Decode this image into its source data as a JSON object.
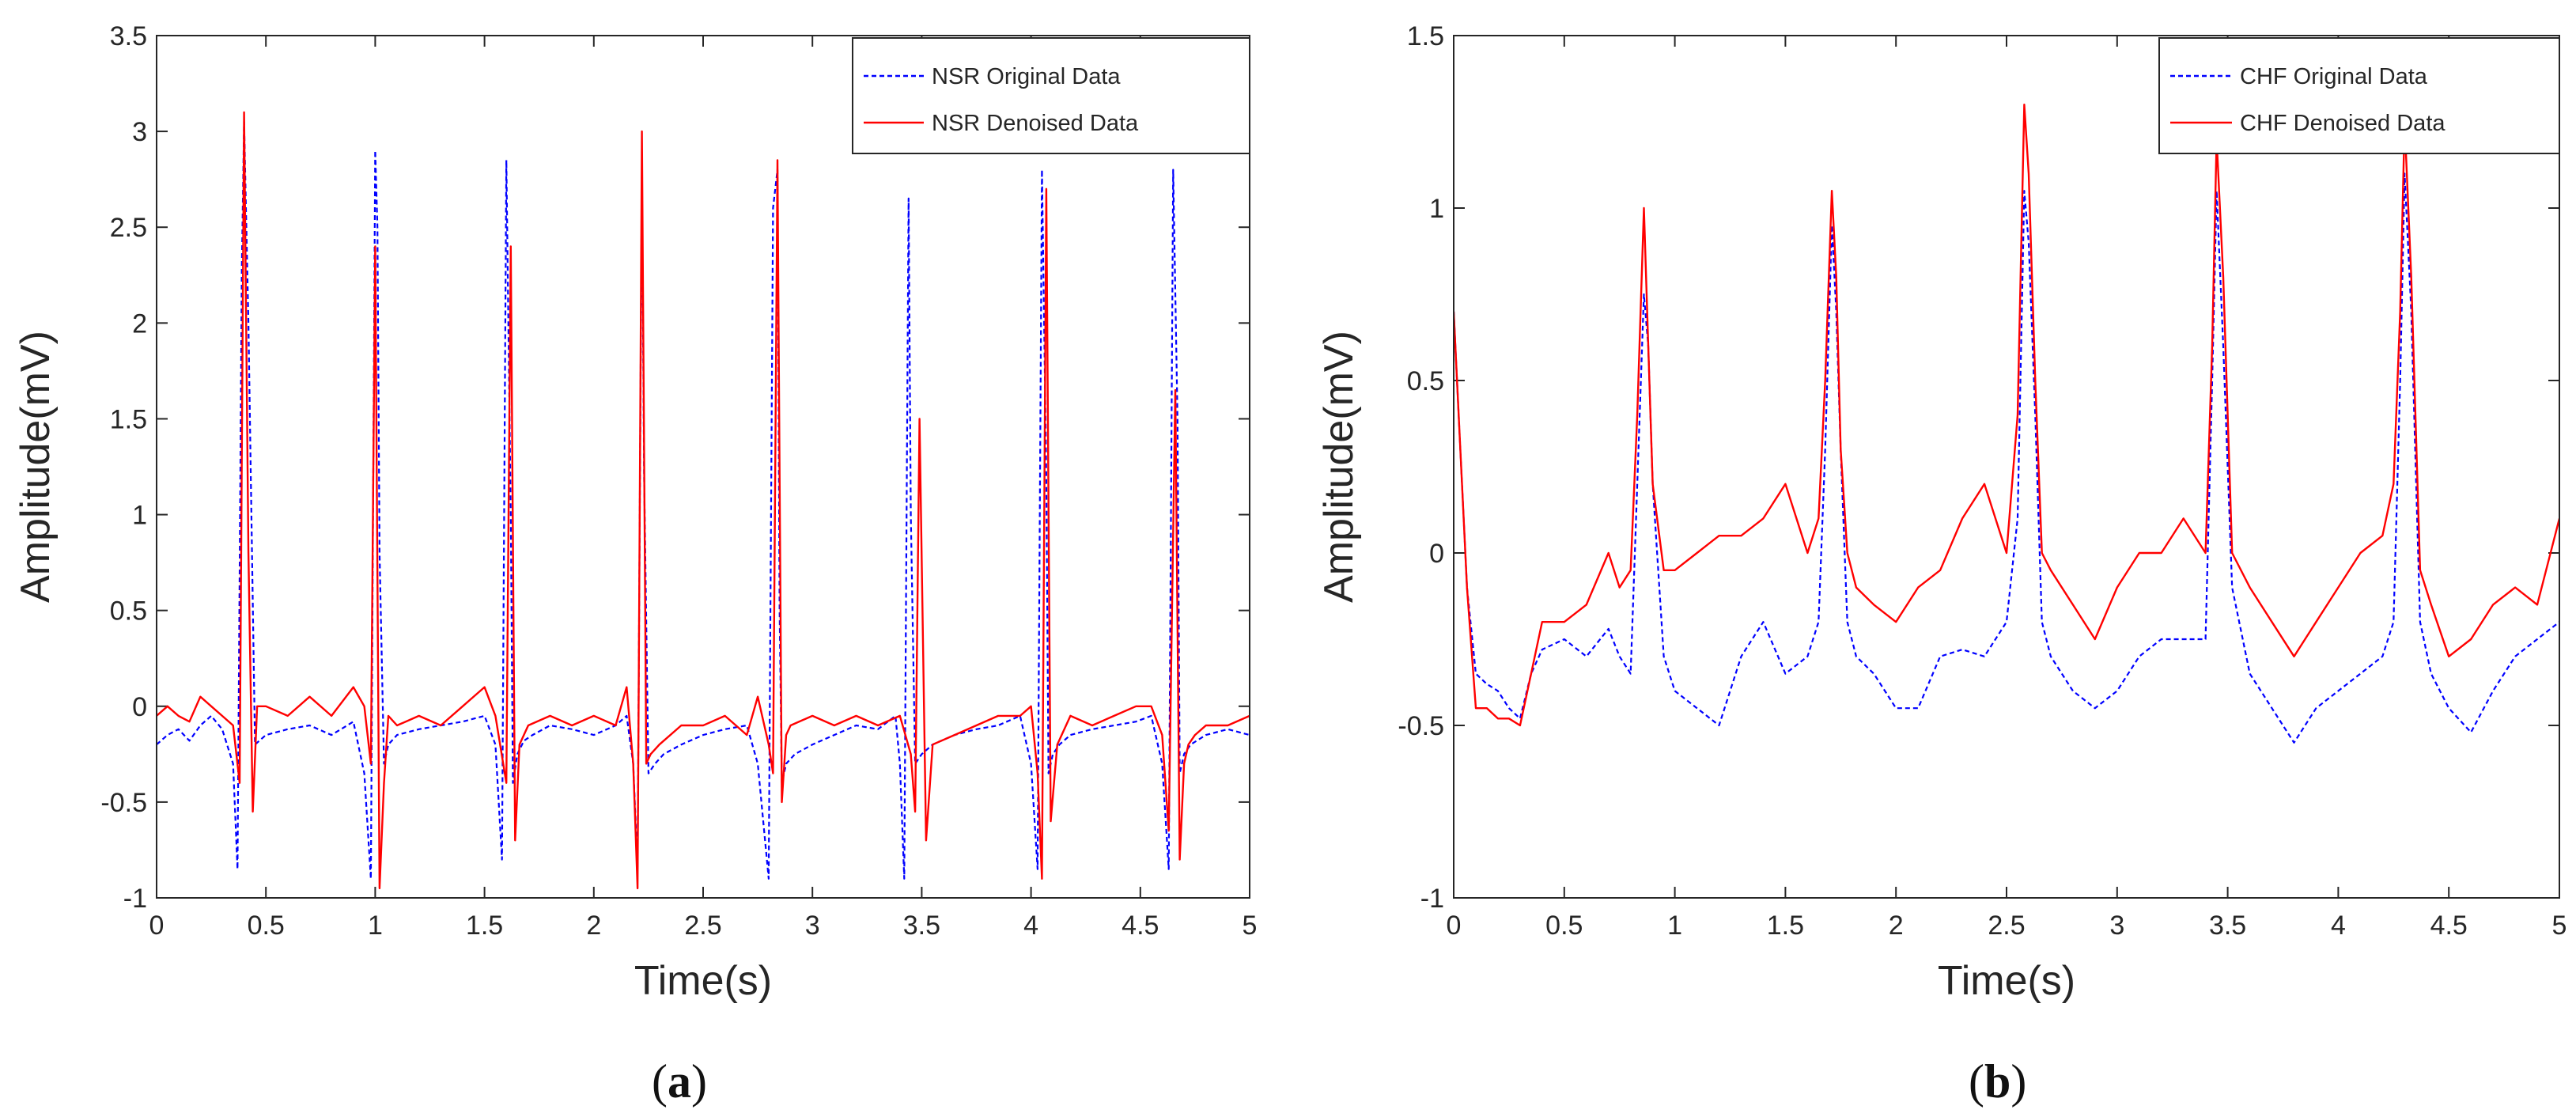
{
  "figure": {
    "captions": [
      {
        "open": "(",
        "letter": "a",
        "close": ")"
      },
      {
        "open": "(",
        "letter": "b",
        "close": ")"
      }
    ]
  },
  "colors": {
    "original": "#0000ff",
    "denoised": "#ff0000",
    "axis": "#262626"
  },
  "chart_data": [
    {
      "type": "line",
      "xlabel": "Time(s)",
      "ylabel": "Amplitude(mV)",
      "xlim": [
        0,
        5
      ],
      "ylim": [
        -1,
        3.5
      ],
      "xticks": [
        0,
        0.5,
        1,
        1.5,
        2,
        2.5,
        3,
        3.5,
        4,
        4.5,
        5
      ],
      "xtick_labels": [
        "0",
        "0.5",
        "1",
        "1.5",
        "2",
        "2.5",
        "3",
        "3.5",
        "4",
        "4.5",
        "5"
      ],
      "yticks": [
        -1,
        -0.5,
        0,
        0.5,
        1,
        1.5,
        2,
        2.5,
        3,
        3.5
      ],
      "ytick_labels": [
        "-1",
        "-0.5",
        "0",
        "0.5",
        "1",
        "1.5",
        "2",
        "2.5",
        "3",
        "3.5"
      ],
      "legend_position": "top-right",
      "series": [
        {
          "name": "NSR Original Data",
          "style": "dashed",
          "color": "#0000ff",
          "x": [
            0,
            0.05,
            0.1,
            0.15,
            0.2,
            0.25,
            0.3,
            0.35,
            0.37,
            0.39,
            0.4,
            0.42,
            0.45,
            0.5,
            0.6,
            0.7,
            0.8,
            0.9,
            0.95,
            0.98,
            1.0,
            1.01,
            1.02,
            1.04,
            1.06,
            1.1,
            1.2,
            1.3,
            1.4,
            1.5,
            1.55,
            1.58,
            1.6,
            1.62,
            1.63,
            1.65,
            1.68,
            1.72,
            1.8,
            1.9,
            2.0,
            2.1,
            2.15,
            2.18,
            2.2,
            2.22,
            2.23,
            2.25,
            2.28,
            2.32,
            2.4,
            2.5,
            2.6,
            2.7,
            2.75,
            2.8,
            2.82,
            2.84,
            2.85,
            2.86,
            2.88,
            2.92,
            3.0,
            3.1,
            3.2,
            3.3,
            3.38,
            3.4,
            3.42,
            3.44,
            3.45,
            3.47,
            3.5,
            3.55,
            3.65,
            3.75,
            3.85,
            3.95,
            4.0,
            4.03,
            4.05,
            4.07,
            4.08,
            4.1,
            4.13,
            4.18,
            4.28,
            4.38,
            4.48,
            4.55,
            4.6,
            4.63,
            4.65,
            4.67,
            4.68,
            4.7,
            4.73,
            4.8,
            4.9,
            5.0
          ],
          "y": [
            -0.2,
            -0.15,
            -0.12,
            -0.18,
            -0.1,
            -0.05,
            -0.12,
            -0.3,
            -0.85,
            2.3,
            3.05,
            2.0,
            -0.2,
            -0.15,
            -0.12,
            -0.1,
            -0.15,
            -0.08,
            -0.35,
            -0.9,
            2.9,
            2.5,
            0.8,
            -0.3,
            -0.2,
            -0.15,
            -0.12,
            -0.1,
            -0.08,
            -0.05,
            -0.2,
            -0.8,
            2.85,
            1.0,
            -0.4,
            -0.25,
            -0.18,
            -0.15,
            -0.1,
            -0.12,
            -0.15,
            -0.1,
            -0.05,
            -0.3,
            -0.85,
            2.8,
            1.2,
            -0.35,
            -0.3,
            -0.25,
            -0.2,
            -0.15,
            -0.12,
            -0.1,
            -0.3,
            -0.9,
            2.6,
            2.8,
            0.5,
            -0.4,
            -0.3,
            -0.25,
            -0.2,
            -0.15,
            -0.1,
            -0.12,
            -0.05,
            -0.3,
            -0.9,
            2.65,
            1.0,
            -0.3,
            -0.25,
            -0.2,
            -0.15,
            -0.12,
            -0.1,
            -0.05,
            -0.3,
            -0.85,
            2.8,
            1.2,
            -0.35,
            -0.25,
            -0.2,
            -0.15,
            -0.12,
            -0.1,
            -0.08,
            -0.05,
            -0.3,
            -0.85,
            2.8,
            1.5,
            -0.35,
            -0.25,
            -0.2,
            -0.15,
            -0.12,
            -0.15
          ]
        },
        {
          "name": "NSR Denoised Data",
          "style": "solid",
          "color": "#ff0000",
          "x": [
            0,
            0.05,
            0.1,
            0.15,
            0.2,
            0.25,
            0.3,
            0.35,
            0.38,
            0.4,
            0.42,
            0.44,
            0.46,
            0.5,
            0.6,
            0.7,
            0.8,
            0.9,
            0.95,
            0.98,
            1.0,
            1.02,
            1.04,
            1.06,
            1.1,
            1.2,
            1.3,
            1.4,
            1.5,
            1.55,
            1.6,
            1.62,
            1.64,
            1.66,
            1.7,
            1.8,
            1.9,
            2.0,
            2.1,
            2.15,
            2.18,
            2.2,
            2.22,
            2.24,
            2.26,
            2.3,
            2.4,
            2.5,
            2.6,
            2.7,
            2.75,
            2.8,
            2.82,
            2.84,
            2.86,
            2.88,
            2.9,
            3.0,
            3.1,
            3.2,
            3.3,
            3.4,
            3.45,
            3.47,
            3.49,
            3.52,
            3.55,
            3.65,
            3.75,
            3.85,
            3.95,
            4.0,
            4.03,
            4.05,
            4.07,
            4.09,
            4.12,
            4.18,
            4.28,
            4.38,
            4.48,
            4.55,
            4.6,
            4.63,
            4.66,
            4.68,
            4.7,
            4.72,
            4.75,
            4.8,
            4.9,
            5.0
          ],
          "y": [
            -0.05,
            0.0,
            -0.05,
            -0.08,
            0.05,
            0.0,
            -0.05,
            -0.1,
            -0.4,
            3.1,
            0.8,
            -0.55,
            0.0,
            0.0,
            -0.05,
            0.05,
            -0.05,
            0.1,
            0.0,
            -0.3,
            2.4,
            -0.95,
            -0.4,
            -0.05,
            -0.1,
            -0.05,
            -0.1,
            0.0,
            0.1,
            -0.05,
            -0.4,
            2.4,
            -0.7,
            -0.2,
            -0.1,
            -0.05,
            -0.1,
            -0.05,
            -0.1,
            0.1,
            -0.3,
            -0.95,
            3.0,
            -0.3,
            -0.25,
            -0.2,
            -0.1,
            -0.1,
            -0.05,
            -0.15,
            0.05,
            -0.2,
            -0.35,
            2.85,
            -0.5,
            -0.15,
            -0.1,
            -0.05,
            -0.1,
            -0.05,
            -0.1,
            -0.05,
            -0.25,
            -0.55,
            1.5,
            -0.7,
            -0.2,
            -0.15,
            -0.1,
            -0.05,
            -0.05,
            0.0,
            -0.35,
            -0.9,
            2.7,
            -0.6,
            -0.2,
            -0.05,
            -0.1,
            -0.05,
            0.0,
            0.0,
            -0.15,
            -0.65,
            1.65,
            -0.8,
            -0.3,
            -0.2,
            -0.15,
            -0.1,
            -0.1,
            -0.05
          ]
        }
      ]
    },
    {
      "type": "line",
      "xlabel": "Time(s)",
      "ylabel": "Amplitude(mV)",
      "xlim": [
        0,
        5
      ],
      "ylim": [
        -1,
        1.5
      ],
      "xticks": [
        0,
        0.5,
        1,
        1.5,
        2,
        2.5,
        3,
        3.5,
        4,
        4.5,
        5
      ],
      "xtick_labels": [
        "0",
        "0.5",
        "1",
        "1.5",
        "2",
        "2.5",
        "3",
        "3.5",
        "4",
        "4.5",
        "5"
      ],
      "yticks": [
        -1,
        -0.5,
        0,
        0.5,
        1,
        1.5
      ],
      "ytick_labels": [
        "-1",
        "-0.5",
        "0",
        "0.5",
        "1",
        "1.5"
      ],
      "legend_position": "top-right",
      "series": [
        {
          "name": "CHF Original Data",
          "style": "dashed",
          "color": "#0000ff",
          "x": [
            0,
            0.03,
            0.06,
            0.1,
            0.15,
            0.2,
            0.25,
            0.3,
            0.35,
            0.4,
            0.5,
            0.6,
            0.7,
            0.75,
            0.8,
            0.83,
            0.86,
            0.88,
            0.9,
            0.95,
            1.0,
            1.1,
            1.2,
            1.3,
            1.4,
            1.5,
            1.6,
            1.65,
            1.68,
            1.71,
            1.73,
            1.75,
            1.78,
            1.82,
            1.9,
            2.0,
            2.1,
            2.2,
            2.3,
            2.4,
            2.5,
            2.55,
            2.58,
            2.6,
            2.63,
            2.66,
            2.7,
            2.8,
            2.9,
            3.0,
            3.1,
            3.2,
            3.3,
            3.4,
            3.43,
            3.45,
            3.48,
            3.52,
            3.6,
            3.7,
            3.8,
            3.9,
            4.0,
            4.1,
            4.2,
            4.25,
            4.28,
            4.3,
            4.33,
            4.37,
            4.42,
            4.5,
            4.6,
            4.7,
            4.8,
            4.9,
            5.0
          ],
          "y": [
            0.7,
            0.3,
            -0.1,
            -0.35,
            -0.38,
            -0.4,
            -0.45,
            -0.48,
            -0.35,
            -0.28,
            -0.25,
            -0.3,
            -0.22,
            -0.3,
            -0.35,
            0.2,
            0.75,
            0.6,
            0.2,
            -0.3,
            -0.4,
            -0.45,
            -0.5,
            -0.3,
            -0.2,
            -0.35,
            -0.3,
            -0.2,
            0.3,
            0.95,
            0.7,
            0.3,
            -0.2,
            -0.3,
            -0.35,
            -0.45,
            -0.45,
            -0.3,
            -0.28,
            -0.3,
            -0.2,
            0.1,
            1.05,
            0.9,
            0.4,
            -0.2,
            -0.3,
            -0.4,
            -0.45,
            -0.4,
            -0.3,
            -0.25,
            -0.25,
            -0.25,
            0.5,
            1.05,
            0.6,
            -0.1,
            -0.35,
            -0.45,
            -0.55,
            -0.45,
            -0.4,
            -0.35,
            -0.3,
            -0.2,
            0.5,
            1.1,
            0.7,
            -0.2,
            -0.35,
            -0.45,
            -0.52,
            -0.4,
            -0.3,
            -0.25,
            -0.2
          ]
        },
        {
          "name": "CHF Denoised Data",
          "style": "solid",
          "color": "#ff0000",
          "x": [
            0,
            0.03,
            0.06,
            0.1,
            0.15,
            0.2,
            0.25,
            0.3,
            0.35,
            0.4,
            0.5,
            0.6,
            0.7,
            0.75,
            0.8,
            0.83,
            0.86,
            0.88,
            0.9,
            0.95,
            1.0,
            1.1,
            1.2,
            1.3,
            1.4,
            1.5,
            1.6,
            1.65,
            1.68,
            1.71,
            1.73,
            1.75,
            1.78,
            1.82,
            1.9,
            2.0,
            2.1,
            2.2,
            2.3,
            2.4,
            2.5,
            2.55,
            2.58,
            2.6,
            2.63,
            2.66,
            2.7,
            2.8,
            2.9,
            3.0,
            3.1,
            3.2,
            3.3,
            3.4,
            3.43,
            3.45,
            3.48,
            3.52,
            3.6,
            3.7,
            3.8,
            3.9,
            4.0,
            4.1,
            4.2,
            4.25,
            4.28,
            4.3,
            4.33,
            4.37,
            4.42,
            4.5,
            4.6,
            4.7,
            4.8,
            4.9,
            5.0
          ],
          "y": [
            0.7,
            0.3,
            -0.1,
            -0.45,
            -0.45,
            -0.48,
            -0.48,
            -0.5,
            -0.35,
            -0.2,
            -0.2,
            -0.15,
            0.0,
            -0.1,
            -0.05,
            0.4,
            1.0,
            0.6,
            0.2,
            -0.05,
            -0.05,
            0.0,
            0.05,
            0.05,
            0.1,
            0.2,
            0.0,
            0.1,
            0.5,
            1.05,
            0.8,
            0.3,
            0.0,
            -0.1,
            -0.15,
            -0.2,
            -0.1,
            -0.05,
            0.1,
            0.2,
            0.0,
            0.4,
            1.3,
            1.1,
            0.5,
            0.0,
            -0.05,
            -0.15,
            -0.25,
            -0.1,
            0.0,
            0.0,
            0.1,
            0.0,
            0.6,
            1.2,
            0.8,
            0.0,
            -0.1,
            -0.2,
            -0.3,
            -0.2,
            -0.1,
            0.0,
            0.05,
            0.2,
            0.7,
            1.25,
            0.8,
            -0.05,
            -0.15,
            -0.3,
            -0.25,
            -0.15,
            -0.1,
            -0.15,
            0.1
          ]
        }
      ]
    }
  ]
}
